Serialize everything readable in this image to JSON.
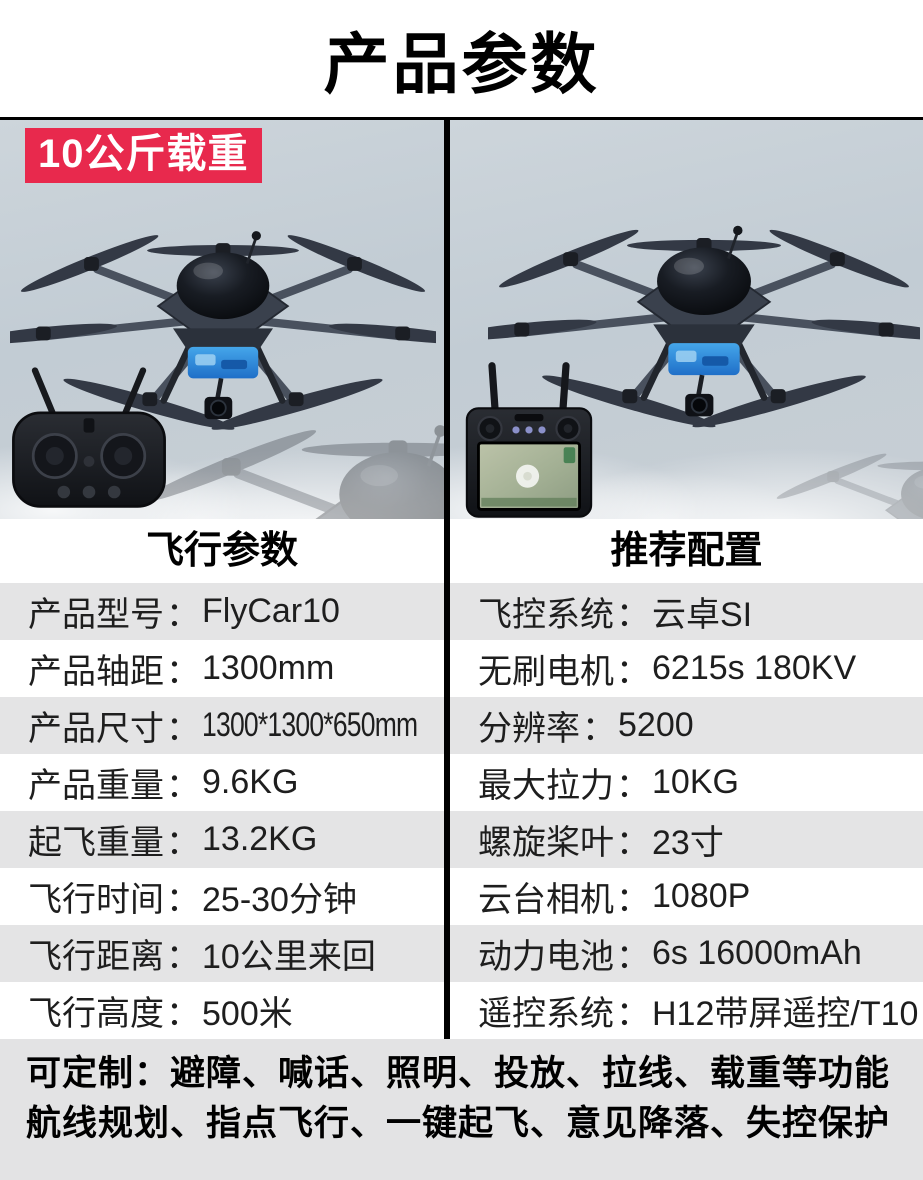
{
  "title": "产品参数",
  "hero": {
    "badge": "10公斤载重"
  },
  "table": {
    "colon": "：",
    "left": {
      "header": "飞行参数",
      "rows": [
        {
          "label": "产品型号",
          "value": "FlyCar10"
        },
        {
          "label": "产品轴距",
          "value": "1300mm"
        },
        {
          "label": "产品尺寸",
          "value": "1300*1300*650mm"
        },
        {
          "label": "产品重量",
          "value": "9.6KG"
        },
        {
          "label": "起飞重量",
          "value": "13.2KG"
        },
        {
          "label": "飞行时间",
          "value": "25-30分钟"
        },
        {
          "label": "飞行距离",
          "value": "10公里来回"
        },
        {
          "label": "飞行高度",
          "value": "500米"
        }
      ]
    },
    "right": {
      "header": "推荐配置",
      "rows": [
        {
          "label": "飞控系统",
          "value": "云卓SI"
        },
        {
          "label": "无刷电机",
          "value": "6215s 180KV"
        },
        {
          "label": "分辨率",
          "value": "5200"
        },
        {
          "label": "最大拉力",
          "value": "10KG"
        },
        {
          "label": "螺旋桨叶",
          "value": "23寸"
        },
        {
          "label": "云台相机",
          "value": "1080P"
        },
        {
          "label": "动力电池",
          "value": "6s 16000mAh"
        },
        {
          "label": "遥控系统",
          "value": "H12带屏遥控/T10"
        }
      ]
    }
  },
  "footer": {
    "line1": "可定制：避障、喊话、照明、投放、拉线、载重等功能",
    "line2": "航线规划、指点飞行、一键起飞、意见降落、失控保护"
  },
  "colors": {
    "badge_red": "#e8294d",
    "stripe_gray": "#e4e4e5",
    "footer_gray": "#e3e3e4",
    "sky_blue_gray": "#c4cdd4",
    "divider_black": "#000000"
  }
}
